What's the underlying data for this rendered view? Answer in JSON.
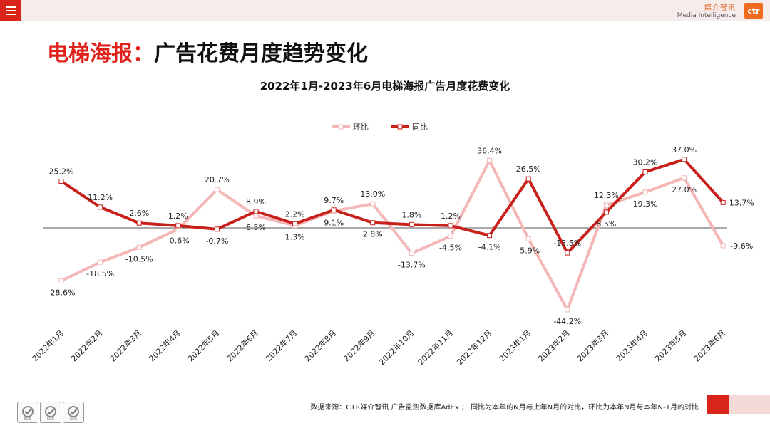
{
  "header": {
    "brand_cn": "媒介智讯",
    "brand_en": "Media Intelligence",
    "logo_text": "ctr"
  },
  "page": {
    "title_red": "电梯海报：",
    "title_black": "广告花费月度趋势变化"
  },
  "footer": {
    "note": "数据来源：CTR媒介智讯 广告监测数据库AdEx ；  同比为本年的N月与上年N月的对比，环比为本年N月与本年N-1月的对比",
    "badges": [
      "SGS",
      "SGS",
      "SGS"
    ]
  },
  "colors": {
    "accent": "#d9241b",
    "huanbi": "#f4b6b6",
    "tongbi": "#c8211c"
  },
  "chart_data": {
    "type": "line",
    "title": "2022年1月-2023年6月电梯海报广告月度花费变化",
    "categories": [
      "2022年1月",
      "2022年2月",
      "2022年3月",
      "2022年4月",
      "2022年5月",
      "2022年6月",
      "2022年7月",
      "2022年8月",
      "2022年9月",
      "2022年10月",
      "2022年11月",
      "2022年12月",
      "2023年1月",
      "2023年2月",
      "2023年3月",
      "2023年4月",
      "2023年5月",
      "2023年6月"
    ],
    "series": [
      {
        "name": "环比",
        "color": "#f4b6b6",
        "values": [
          -28.6,
          -18.5,
          -10.5,
          -0.6,
          20.7,
          6.5,
          1.3,
          9.1,
          13.0,
          -13.7,
          -4.5,
          36.4,
          -5.9,
          -44.2,
          12.3,
          19.3,
          27.0,
          -9.6
        ],
        "labels": [
          "-28.6%",
          "-18.5%",
          "-10.5%",
          "-0.6%",
          "20.7%",
          "6.5%",
          "1.3%",
          "9.1%",
          "13.0%",
          "-13.7%",
          "-4.5%",
          "36.4%",
          "-5.9%",
          "-44.2%",
          "12.3%",
          "19.3%",
          "27.0%",
          "-9.6%"
        ]
      },
      {
        "name": "同比",
        "color": "#c8211c",
        "values": [
          25.2,
          11.2,
          2.6,
          1.2,
          -0.7,
          8.9,
          2.2,
          9.7,
          2.8,
          1.8,
          1.2,
          -4.1,
          26.5,
          -13.5,
          8.5,
          30.2,
          37.0,
          13.7
        ],
        "labels": [
          "25.2%",
          "11.2%",
          "2.6%",
          "1.2%",
          "-0.7%",
          "8.9%",
          "2.2%",
          "9.7%",
          "2.8%",
          "1.8%",
          "1.2%",
          "-4.1%",
          "26.5%",
          "-13.5%",
          "8.5%",
          "30.2%",
          "37.0%",
          "13.7%"
        ]
      }
    ],
    "legend": "top-center",
    "grid": false,
    "ylim": [
      -50,
      40
    ]
  }
}
